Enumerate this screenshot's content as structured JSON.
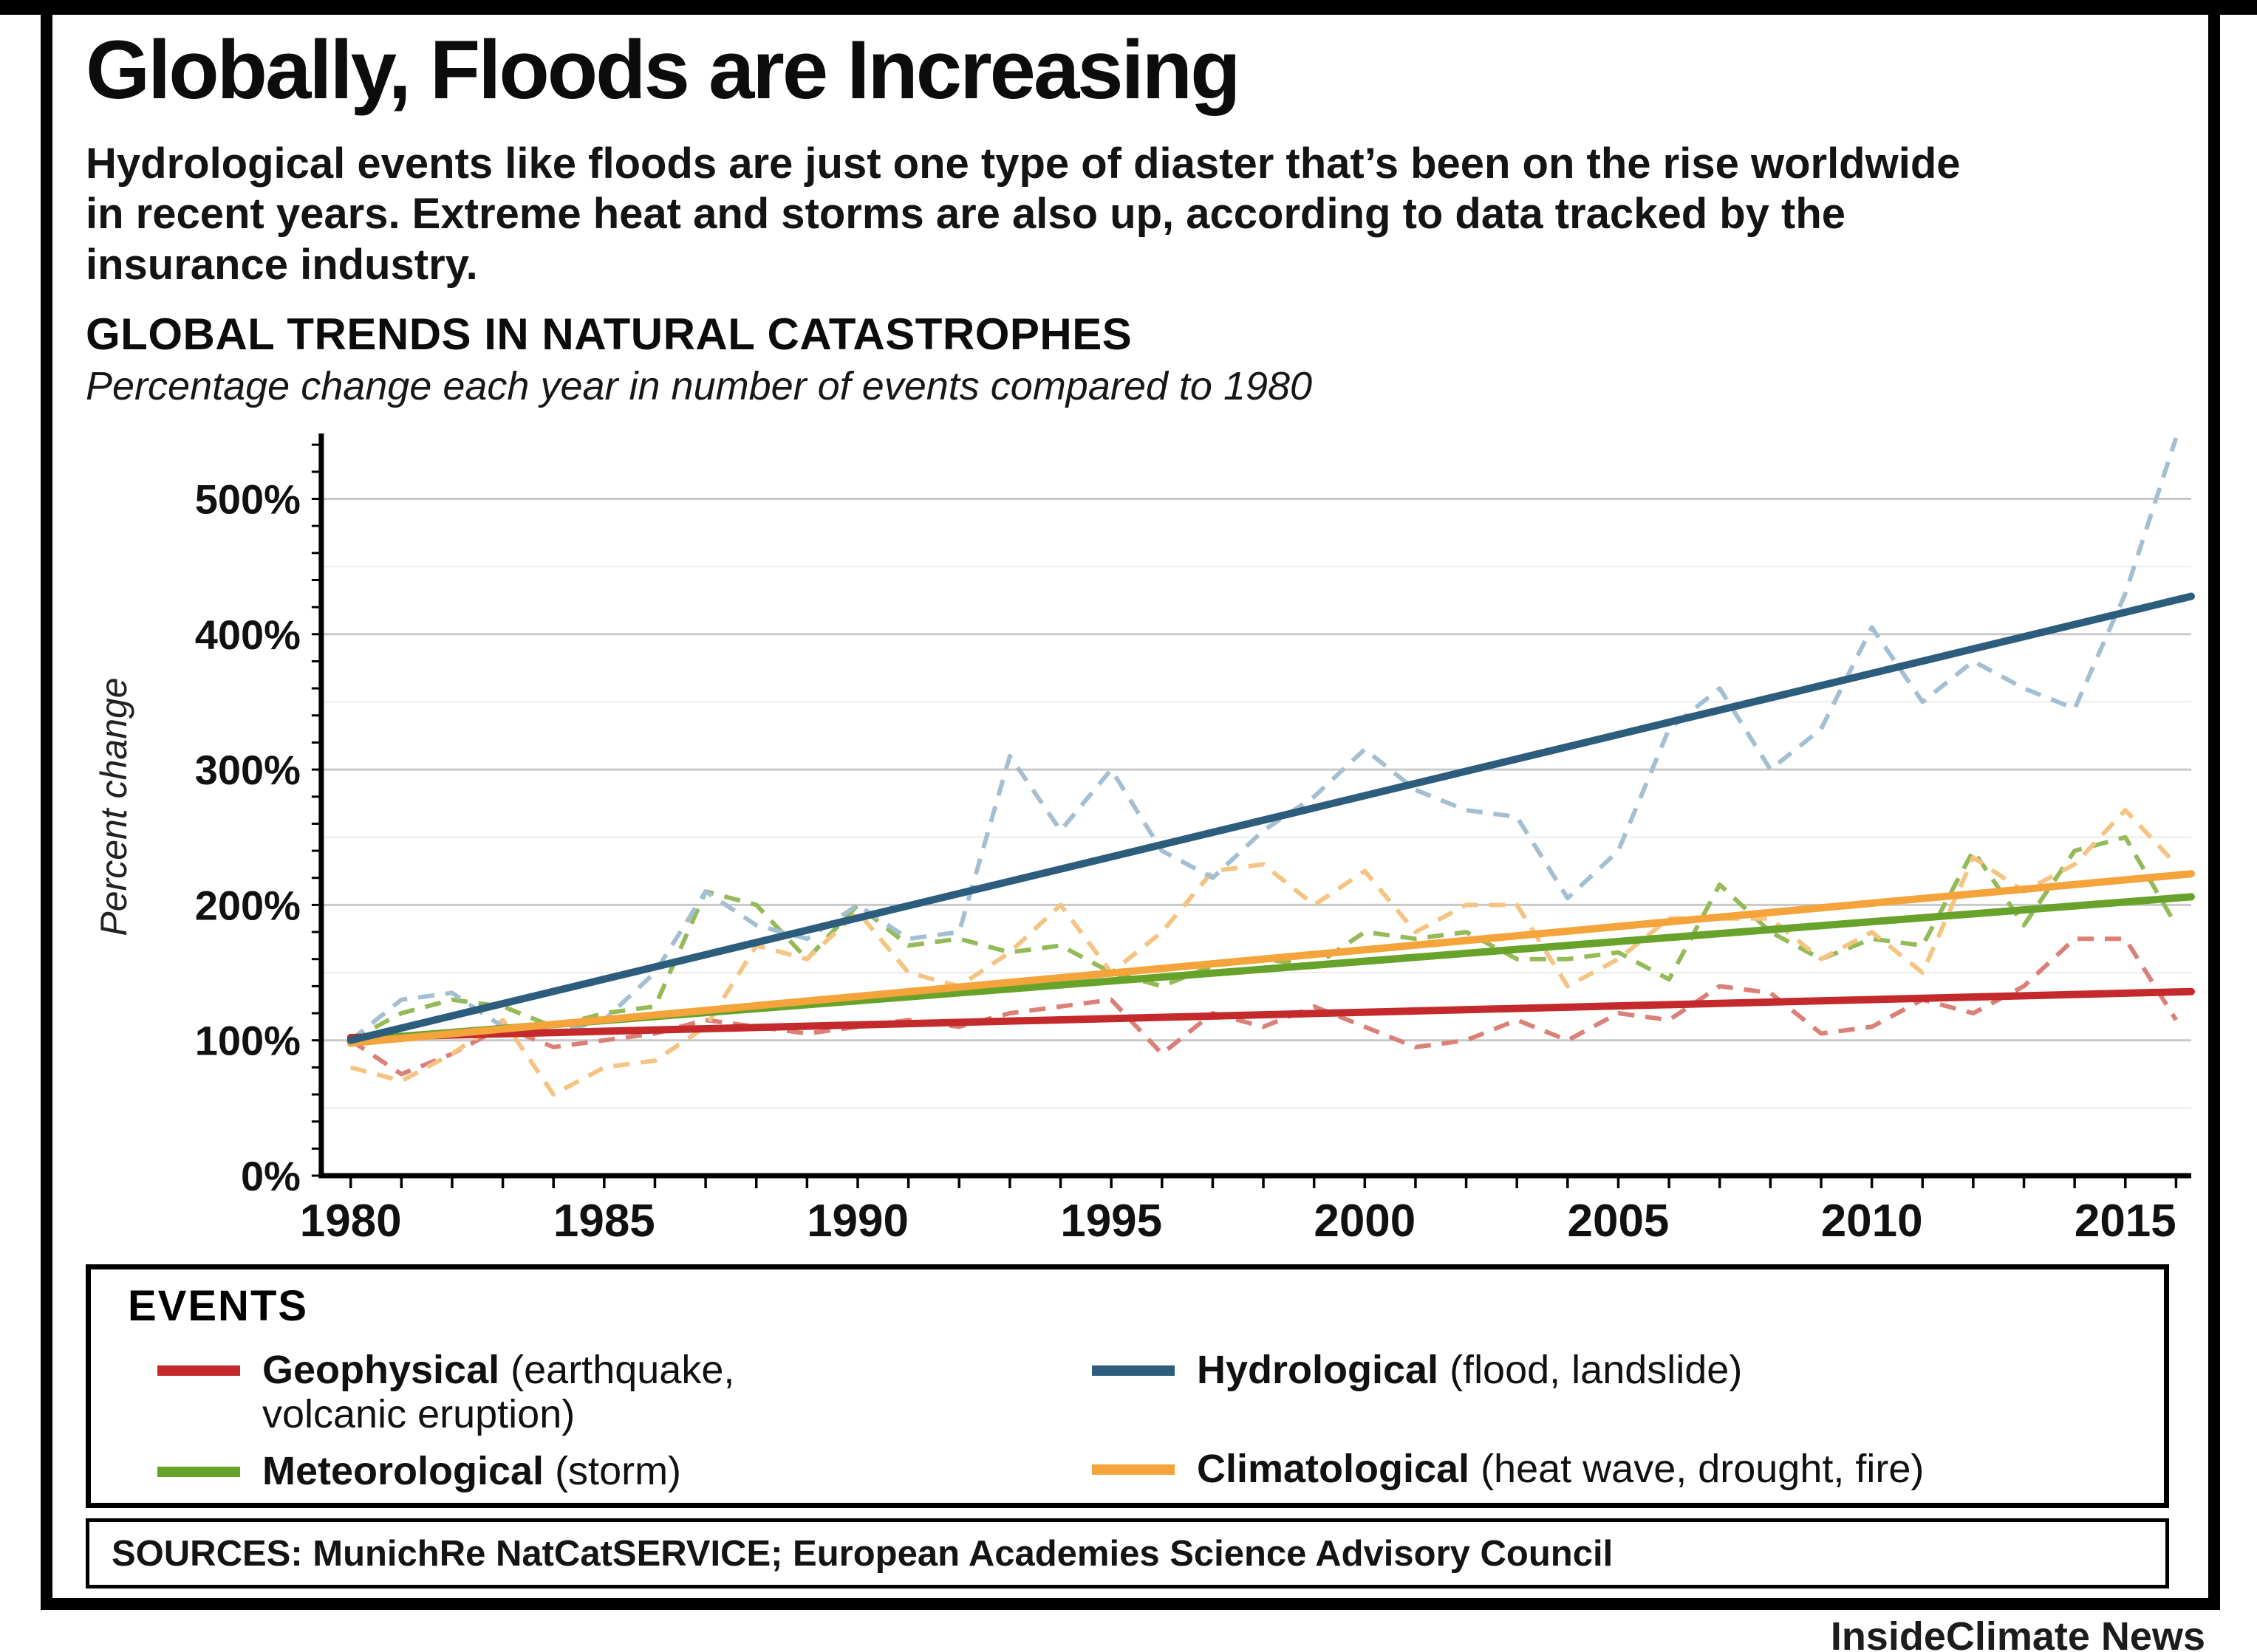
{
  "header": {
    "title": "Globally, Floods are Increasing",
    "intro": "Hydrological events like floods are just one type of diaster that’s been on the rise worldwide in recent years. Extreme heat and storms are also up, according to data tracked by the insurance industry.",
    "section_title": "GLOBAL TRENDS IN NATURAL CATASTROPHES",
    "section_subtitle": "Percentage change each year in number of events compared to 1980"
  },
  "legend": {
    "title": "EVENTS",
    "items": [
      {
        "name": "Geophysical",
        "desc": "(earthquake, volcanic eruption)",
        "color": "#c4292b"
      },
      {
        "name": "Meteorological",
        "desc": "(storm)",
        "color": "#67a32a"
      },
      {
        "name": "Hydrological",
        "desc": "(flood, landslide)",
        "color": "#2c5d7c"
      },
      {
        "name": "Climatological",
        "desc": "(heat wave, drought, fire)",
        "color": "#f4a43b"
      }
    ]
  },
  "footer": {
    "sources": "SOURCES: MunichRe NatCatSERVICE; European Academies Science Advisory Council",
    "credit": "InsideClimate News"
  },
  "chart_data": {
    "type": "line",
    "title": "GLOBAL TRENDS IN NATURAL CATASTROPHES",
    "subtitle": "Percentage change each year in number of events compared to 1980",
    "xlabel": "",
    "ylabel": "Percent change",
    "xlim": [
      1979.42,
      2016.3
    ],
    "ylim": [
      0,
      545
    ],
    "x_ticks": [
      1980,
      1985,
      1990,
      1995,
      2000,
      2005,
      2010,
      2015
    ],
    "y_ticks": [
      0,
      100,
      200,
      300,
      400,
      500
    ],
    "grid": true,
    "legend_position": "bottom-box",
    "years": [
      1980,
      1981,
      1982,
      1983,
      1984,
      1985,
      1986,
      1987,
      1988,
      1989,
      1990,
      1991,
      1992,
      1993,
      1994,
      1995,
      1996,
      1997,
      1998,
      1999,
      2000,
      2001,
      2002,
      2003,
      2004,
      2005,
      2006,
      2007,
      2008,
      2009,
      2010,
      2011,
      2012,
      2013,
      2014,
      2015,
      2016
    ],
    "trend_x": [
      1980,
      2016.3
    ],
    "series": [
      {
        "name": "Geophysical (earthquake, volcanic eruption)",
        "color": "#c4292b",
        "dash_color": "#db8078",
        "annual": [
          100,
          75,
          90,
          110,
          95,
          100,
          105,
          115,
          110,
          105,
          110,
          115,
          110,
          120,
          125,
          130,
          90,
          120,
          110,
          125,
          110,
          95,
          100,
          115,
          100,
          120,
          115,
          140,
          135,
          105,
          110,
          130,
          120,
          140,
          175,
          175,
          115
        ],
        "trend": [
          102,
          136
        ]
      },
      {
        "name": "Meteorological (storm)",
        "color": "#67a32a",
        "dash_color": "#94bb58",
        "annual": [
          100,
          120,
          130,
          125,
          110,
          120,
          125,
          210,
          200,
          160,
          200,
          170,
          175,
          165,
          170,
          150,
          140,
          155,
          160,
          155,
          180,
          175,
          180,
          160,
          160,
          165,
          145,
          215,
          180,
          160,
          175,
          170,
          240,
          185,
          240,
          250,
          185
        ],
        "trend": [
          100,
          206
        ]
      },
      {
        "name": "Climatological (heat wave, drought, fire)",
        "color": "#f4a43b",
        "dash_color": "#f6c482",
        "annual": [
          80,
          70,
          90,
          115,
          60,
          80,
          85,
          110,
          170,
          160,
          195,
          150,
          140,
          165,
          200,
          150,
          180,
          225,
          230,
          200,
          225,
          180,
          200,
          200,
          140,
          160,
          190,
          190,
          190,
          160,
          180,
          150,
          235,
          210,
          230,
          270,
          230
        ],
        "trend": [
          98,
          223
        ]
      },
      {
        "name": "Hydrological (flood, landslide)",
        "color": "#2c5d7c",
        "dash_color": "#a4bfd2",
        "annual": [
          100,
          130,
          135,
          110,
          105,
          115,
          150,
          210,
          185,
          175,
          200,
          175,
          180,
          310,
          255,
          300,
          240,
          220,
          255,
          280,
          315,
          285,
          270,
          265,
          205,
          240,
          330,
          360,
          300,
          330,
          405,
          350,
          380,
          360,
          345,
          430,
          545
        ],
        "trend": [
          100,
          428
        ]
      }
    ]
  }
}
